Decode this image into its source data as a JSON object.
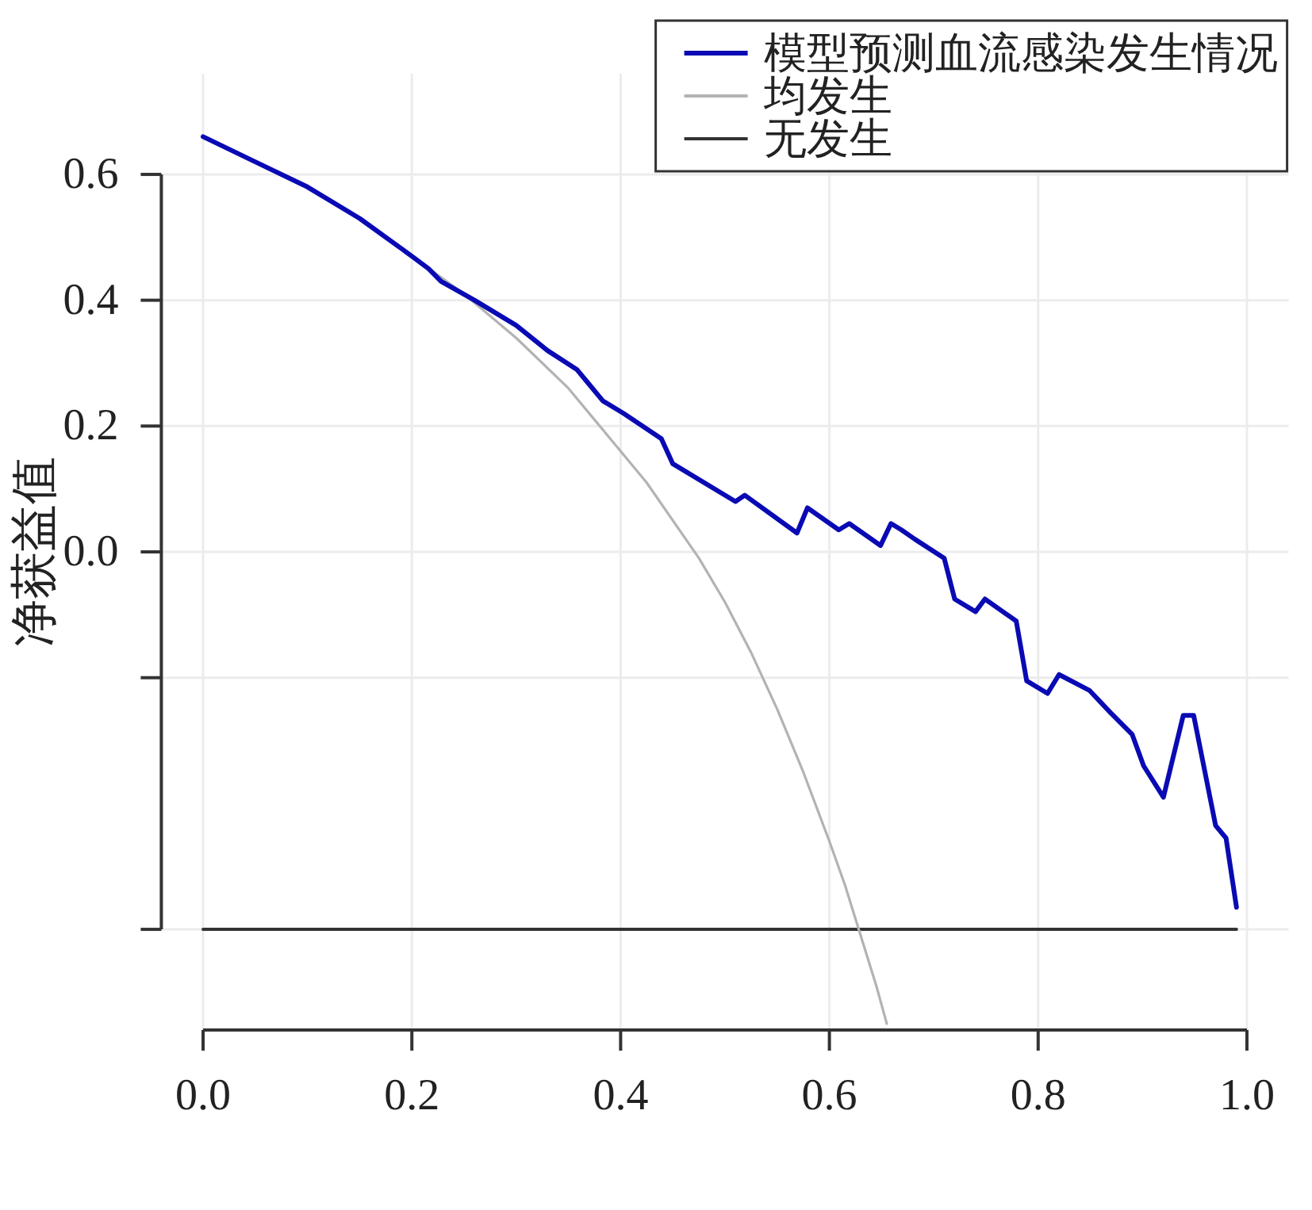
{
  "chart_data": {
    "type": "line",
    "ylabel": "净获益值",
    "xlim": [
      -0.04,
      1.04
    ],
    "ylim": [
      -0.76,
      0.76
    ],
    "xticks": [
      {
        "value": 0,
        "label": "0.0"
      },
      0.2,
      0.4,
      0.6,
      0.8,
      {
        "value": 1,
        "label": "1.0"
      }
    ],
    "yticks": [
      0.6,
      0.4,
      0.2,
      {
        "value": 0,
        "label": "0.0"
      },
      {
        "value": -0.2,
        "label": null
      },
      {
        "value": -0.6,
        "label": null
      }
    ],
    "grid": true,
    "legend": "top right",
    "series": [
      {
        "name": "模型预测血流感染发生情况",
        "color": "#0a0ab4",
        "x": [
          0,
          0.05,
          0.1,
          0.15,
          0.2,
          0.216,
          0.228,
          0.26,
          0.3,
          0.33,
          0.358,
          0.368,
          0.383,
          0.403,
          0.439,
          0.45,
          0.51,
          0.519,
          0.569,
          0.579,
          0.609,
          0.619,
          0.649,
          0.659,
          0.669,
          0.682,
          0.71,
          0.72,
          0.74,
          0.749,
          0.779,
          0.789,
          0.809,
          0.82,
          0.849,
          0.869,
          0.89,
          0.901,
          0.92,
          0.939,
          0.949,
          0.97,
          0.98,
          0.99
        ],
        "values": [
          0.66,
          0.62,
          0.58,
          0.53,
          0.47,
          0.45,
          0.43,
          0.4,
          0.36,
          0.32,
          0.29,
          0.27,
          0.24,
          0.22,
          0.18,
          0.14,
          0.08,
          0.09,
          0.03,
          0.07,
          0.035,
          0.045,
          0.01,
          0.045,
          0.035,
          0.02,
          -0.01,
          -0.075,
          -0.095,
          -0.075,
          -0.11,
          -0.205,
          -0.225,
          -0.195,
          -0.22,
          -0.255,
          -0.29,
          -0.34,
          -0.39,
          -0.26,
          -0.26,
          -0.435,
          -0.455,
          -0.565
        ]
      },
      {
        "name": "均发生",
        "color": "#b3b3b3",
        "x": [
          0,
          0.05,
          0.1,
          0.15,
          0.2,
          0.25,
          0.3,
          0.35,
          0.375,
          0.4,
          0.425,
          0.45,
          0.475,
          0.5,
          0.525,
          0.55,
          0.575,
          0.6,
          0.615,
          0.63,
          0.645,
          0.655
        ],
        "values": [
          0.66,
          0.62,
          0.58,
          0.53,
          0.47,
          0.41,
          0.34,
          0.26,
          0.21,
          0.16,
          0.11,
          0.05,
          -0.01,
          -0.08,
          -0.16,
          -0.25,
          -0.35,
          -0.46,
          -0.53,
          -0.61,
          -0.69,
          -0.75
        ]
      },
      {
        "name": "无发生",
        "color": "#333333",
        "x": [
          0,
          0.99
        ],
        "values": [
          -0.6,
          -0.6
        ]
      }
    ]
  }
}
